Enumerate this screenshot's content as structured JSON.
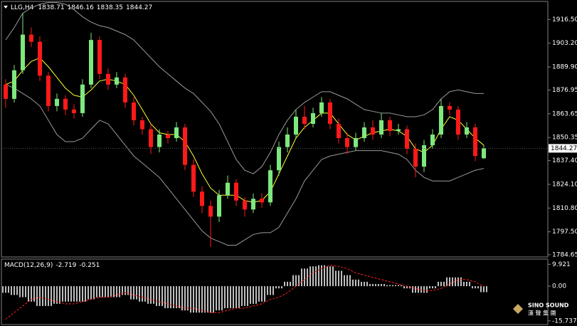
{
  "chart_data": [
    {
      "type": "candlestick",
      "title": "LLG,H4",
      "up_color": "#7ee87e",
      "down_color": "#ff1a1a",
      "ylim": [
        1783.4,
        1926.6
      ],
      "yticks": [
        {
          "value": 1916.5,
          "label": "1916.50"
        },
        {
          "value": 1903.2,
          "label": "1903.20"
        },
        {
          "value": 1889.9,
          "label": "1889.90"
        },
        {
          "value": 1876.95,
          "label": "1876.95"
        },
        {
          "value": 1863.65,
          "label": "1863.65"
        },
        {
          "value": 1850.35,
          "label": "1850.35"
        },
        {
          "value": 1837.4,
          "label": "1837.40"
        },
        {
          "value": 1824.1,
          "label": "1824.10"
        },
        {
          "value": 1810.8,
          "label": "1810.80"
        },
        {
          "value": 1797.5,
          "label": "1797.50"
        },
        {
          "value": 1784.65,
          "label": "1784.65"
        }
      ],
      "open": [
        1880,
        1872,
        1888,
        1908,
        1904,
        1885,
        1868,
        1872,
        1866,
        1864,
        1880,
        1905,
        1886,
        1880,
        1884,
        1870,
        1860,
        1855,
        1845,
        1852,
        1850,
        1856,
        1835,
        1820,
        1812,
        1806,
        1818,
        1825,
        1815,
        1810,
        1816,
        1814,
        1832,
        1845,
        1852,
        1862,
        1858,
        1864,
        1870,
        1858,
        1850,
        1845,
        1850,
        1856,
        1852,
        1860,
        1854,
        1855,
        1844,
        1834,
        1846,
        1852,
        1868,
        1866,
        1852,
        1856,
        1838.71
      ],
      "high": [
        1883,
        1891,
        1920,
        1912,
        1907,
        1887,
        1875,
        1874,
        1869,
        1883,
        1909,
        1907,
        1889,
        1887,
        1886,
        1873,
        1862,
        1858,
        1855,
        1854,
        1859,
        1858,
        1838,
        1823,
        1815,
        1821,
        1829,
        1827,
        1817,
        1819,
        1819,
        1835,
        1848,
        1856,
        1866,
        1868,
        1867,
        1873,
        1872,
        1861,
        1853,
        1853,
        1859,
        1860,
        1864,
        1862,
        1858,
        1857,
        1847,
        1849,
        1855,
        1872,
        1870,
        1868,
        1859,
        1858,
        1846.16
      ],
      "low": [
        1867,
        1870,
        1886,
        1901,
        1882,
        1865,
        1865,
        1863,
        1861,
        1862,
        1878,
        1883,
        1877,
        1878,
        1867,
        1857,
        1852,
        1841,
        1842,
        1847,
        1848,
        1832,
        1817,
        1808,
        1789,
        1803,
        1816,
        1812,
        1806,
        1808,
        1811,
        1812,
        1829,
        1842,
        1850,
        1855,
        1856,
        1862,
        1855,
        1847,
        1841,
        1843,
        1848,
        1849,
        1850,
        1851,
        1852,
        1841,
        1828,
        1831,
        1844,
        1850,
        1863,
        1849,
        1850,
        1837,
        1838.35
      ],
      "close": [
        1872,
        1888,
        1908,
        1904,
        1885,
        1868,
        1872,
        1866,
        1864,
        1880,
        1905,
        1886,
        1880,
        1884,
        1870,
        1860,
        1855,
        1845,
        1852,
        1850,
        1856,
        1835,
        1820,
        1812,
        1806,
        1818,
        1825,
        1815,
        1810,
        1816,
        1814,
        1832,
        1845,
        1852,
        1862,
        1858,
        1864,
        1870,
        1858,
        1850,
        1845,
        1850,
        1856,
        1852,
        1860,
        1854,
        1855,
        1844,
        1834,
        1846,
        1852,
        1868,
        1866,
        1852,
        1856,
        1840,
        1844.27
      ],
      "series": [
        {
          "color": "#9a9a9a",
          "values": [
            1905,
            1912,
            1920,
            1923,
            1925,
            1926,
            1926,
            1925,
            1922,
            1918,
            1915,
            1913,
            1912,
            1910,
            1908,
            1905,
            1900,
            1895,
            1890,
            1886,
            1882,
            1878,
            1875,
            1870,
            1865,
            1858,
            1848,
            1838,
            1832,
            1830,
            1834,
            1842,
            1852,
            1860,
            1866,
            1870,
            1873,
            1876,
            1876,
            1874,
            1872,
            1869,
            1866,
            1865,
            1864,
            1864,
            1863,
            1862,
            1862,
            1863,
            1866,
            1872,
            1876,
            1877,
            1876,
            1875,
            1875
          ]
        },
        {
          "color": "#ffff33",
          "values": [
            1880,
            1882,
            1888,
            1893,
            1895,
            1890,
            1884,
            1878,
            1874,
            1873,
            1877,
            1882,
            1883,
            1882,
            1880,
            1874,
            1866,
            1858,
            1853,
            1852,
            1852,
            1848,
            1840,
            1830,
            1822,
            1818,
            1818,
            1818,
            1815,
            1814,
            1815,
            1820,
            1830,
            1840,
            1850,
            1856,
            1860,
            1864,
            1864,
            1858,
            1852,
            1849,
            1851,
            1853,
            1854,
            1855,
            1854,
            1851,
            1844,
            1842,
            1846,
            1855,
            1862,
            1860,
            1855,
            1850,
            1846
          ]
        },
        {
          "color": "#9a9a9a",
          "values": [
            1880,
            1878,
            1875,
            1872,
            1868,
            1860,
            1852,
            1848,
            1848,
            1850,
            1855,
            1860,
            1858,
            1852,
            1846,
            1840,
            1836,
            1832,
            1828,
            1822,
            1816,
            1810,
            1804,
            1798,
            1794,
            1792,
            1790,
            1790,
            1793,
            1796,
            1797,
            1797,
            1800,
            1808,
            1816,
            1826,
            1832,
            1838,
            1840,
            1841,
            1842,
            1843,
            1843,
            1843,
            1843,
            1842,
            1841,
            1838,
            1832,
            1828,
            1826,
            1826,
            1826,
            1828,
            1830,
            1832,
            1833
          ]
        }
      ]
    },
    {
      "type": "macd",
      "title": "MACD(12,26,9)",
      "hist_color": "#ffffff",
      "signal_color": "#ff2020",
      "ylim": [
        -17.1,
        11.97
      ],
      "yticks": [
        9.921,
        {
          "value": 0,
          "label": "0.00"
        },
        -15.737
      ],
      "hist": [
        -3,
        -4,
        -5,
        -7,
        -9,
        -9,
        -8,
        -7,
        -7,
        -7,
        -6,
        -5,
        -5,
        -5,
        -4,
        -6,
        -7,
        -8,
        -9,
        -10,
        -10,
        -11,
        -12,
        -12,
        -12,
        -11,
        -10,
        -10,
        -9,
        -8,
        -7,
        -4,
        -1,
        2,
        5,
        8,
        9,
        9.5,
        9,
        7,
        5,
        3,
        2,
        1,
        1,
        0.5,
        0.5,
        -1,
        -3,
        -3,
        -1,
        2,
        4,
        4,
        2,
        -1,
        -2.719
      ],
      "signal": [
        -15,
        -12,
        -9,
        -6,
        -5,
        -6,
        -7,
        -8,
        -8,
        -7,
        -6,
        -5,
        -5,
        -4,
        -3,
        -4,
        -5,
        -6,
        -7,
        -8,
        -9,
        -10,
        -10,
        -11,
        -12,
        -12,
        -11,
        -10,
        -10,
        -9,
        -8,
        -6,
        -5,
        -3,
        0,
        3,
        6,
        8,
        9.5,
        9,
        8,
        6,
        5,
        4,
        3,
        2,
        1,
        0,
        -1,
        -2,
        -2,
        -1,
        1,
        3,
        3,
        2,
        -0.251
      ]
    }
  ],
  "logo": {
    "name": "SINO SOUND",
    "chinese": "漢 聲 集 團"
  }
}
